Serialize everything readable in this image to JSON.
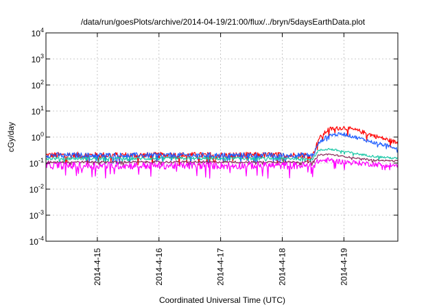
{
  "chart_data": {
    "type": "line",
    "title": "/data/run/goesPlots/archive/2014-04-19/21:00/flux/../bryn/5daysEarthData.plot",
    "xlabel": "Coordinated Universal Time (UTC)",
    "ylabel": "cGy/day",
    "yscale": "log",
    "ylim": [
      0.0001,
      10000
    ],
    "yticks": [
      {
        "value": 0.0001,
        "base": "10",
        "exp": "-4"
      },
      {
        "value": 0.001,
        "base": "10",
        "exp": "-3"
      },
      {
        "value": 0.01,
        "base": "10",
        "exp": "-2"
      },
      {
        "value": 0.1,
        "base": "10",
        "exp": "-1"
      },
      {
        "value": 1,
        "base": "10",
        "exp": "0"
      },
      {
        "value": 10,
        "base": "10",
        "exp": "1"
      },
      {
        "value": 100,
        "base": "10",
        "exp": "2"
      },
      {
        "value": 1000,
        "base": "10",
        "exp": "3"
      },
      {
        "value": 10000,
        "base": "10",
        "exp": "4"
      }
    ],
    "xrange": [
      "2014-04-14 04:00",
      "2014-04-19 21:00"
    ],
    "xticks": [
      "2014-4-15",
      "2014-4-16",
      "2014-4-17",
      "2014-4-18",
      "2014-4-19"
    ],
    "grid": true,
    "event_onset": "2014-04-18 13:00",
    "series": [
      {
        "color": "#ff0000",
        "x": [
          "2014-04-14 04:00",
          "2014-04-16 00:00",
          "2014-04-18 12:00",
          "2014-04-18 14:00",
          "2014-04-18 18:00",
          "2014-04-19 00:00",
          "2014-04-19 06:00",
          "2014-04-19 12:00",
          "2014-04-19 21:00"
        ],
        "y": [
          0.2,
          0.2,
          0.2,
          0.8,
          2.0,
          2.3,
          1.7,
          1.1,
          0.6
        ],
        "noise": 0.12
      },
      {
        "color": "#1f5fff",
        "x": [
          "2014-04-14 04:00",
          "2014-04-16 00:00",
          "2014-04-18 12:00",
          "2014-04-18 14:00",
          "2014-04-18 18:00",
          "2014-04-19 00:00",
          "2014-04-19 06:00",
          "2014-04-19 12:00",
          "2014-04-19 21:00"
        ],
        "y": [
          0.2,
          0.2,
          0.2,
          0.55,
          1.2,
          1.3,
          0.9,
          0.6,
          0.38
        ],
        "noise": 0.1
      },
      {
        "color": "#1fc8a8",
        "x": [
          "2014-04-14 04:00",
          "2014-04-16 00:00",
          "2014-04-18 12:00",
          "2014-04-18 14:00",
          "2014-04-18 18:00",
          "2014-04-19 00:00",
          "2014-04-19 06:00",
          "2014-04-19 12:00",
          "2014-04-19 21:00"
        ],
        "y": [
          0.15,
          0.15,
          0.15,
          0.3,
          0.35,
          0.28,
          0.22,
          0.18,
          0.15
        ],
        "noise": 0.06
      },
      {
        "color": "#8a2a5a",
        "x": [
          "2014-04-14 04:00",
          "2014-04-16 00:00",
          "2014-04-18 12:00",
          "2014-04-18 14:00",
          "2014-04-18 18:00",
          "2014-04-19 00:00",
          "2014-04-19 06:00",
          "2014-04-19 12:00",
          "2014-04-19 21:00"
        ],
        "y": [
          0.11,
          0.11,
          0.11,
          0.2,
          0.22,
          0.18,
          0.15,
          0.13,
          0.12
        ],
        "noise": 0.04
      },
      {
        "color": "#ff00ff",
        "x": [
          "2014-04-14 04:00",
          "2014-04-16 00:00",
          "2014-04-18 12:00",
          "2014-04-18 14:00",
          "2014-04-18 18:00",
          "2014-04-19 00:00",
          "2014-04-19 06:00",
          "2014-04-19 12:00",
          "2014-04-19 21:00"
        ],
        "y": [
          0.08,
          0.08,
          0.08,
          0.12,
          0.13,
          0.11,
          0.1,
          0.09,
          0.08
        ],
        "noise": 0.14
      }
    ]
  }
}
